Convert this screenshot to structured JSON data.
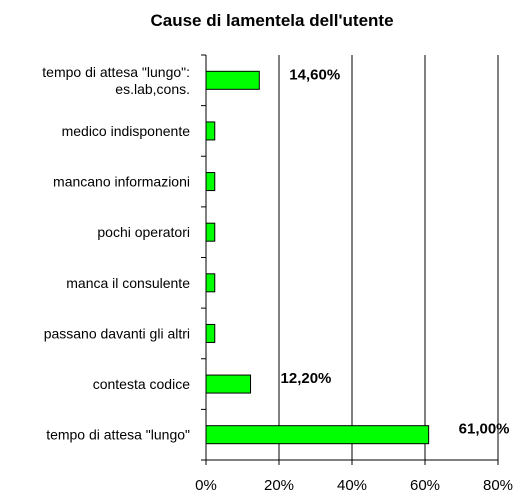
{
  "chart_data": {
    "type": "bar",
    "orientation": "horizontal",
    "title": "Cause di lamentela dell'utente",
    "categories": [
      [
        "tempo di attesa \"lungo\":",
        "es.lab,cons."
      ],
      [
        "medico indisponente"
      ],
      [
        "mancano informazioni"
      ],
      [
        "pochi operatori"
      ],
      [
        "manca il consulente"
      ],
      [
        "passano davanti gli altri"
      ],
      [
        "contesta codice"
      ],
      [
        "tempo di attesa \"lungo\""
      ]
    ],
    "values": [
      14.6,
      2.4,
      2.4,
      2.4,
      2.4,
      2.4,
      12.2,
      61.0
    ],
    "data_labels": [
      "14,60%",
      "",
      "",
      "",
      "",
      "",
      "12,20%",
      "61,00%"
    ],
    "xlim": [
      0,
      80
    ],
    "x_ticks": [
      0,
      20,
      40,
      60,
      80
    ],
    "x_tick_labels": [
      "0%",
      "20%",
      "40%",
      "60%",
      "80%"
    ],
    "bar_color": "#00ff00",
    "grid": "vertical",
    "legend": "none"
  }
}
